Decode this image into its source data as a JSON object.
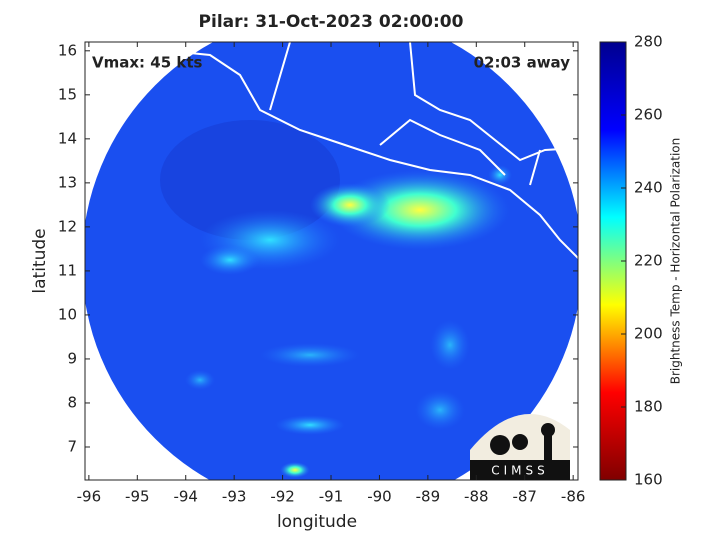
{
  "map": {
    "title": "Pilar: 31-Oct-2023 02:00:00",
    "annotation_left": "Vmax: 45 kts",
    "annotation_right": "02:03 away",
    "x_axis": {
      "label": "longitude",
      "lim": [
        -96.08,
        -85.9
      ],
      "ticks": [
        -96,
        -95,
        -94,
        -93,
        -92,
        -91,
        -90,
        -89,
        -88,
        -87,
        -86
      ]
    },
    "y_axis": {
      "label": "latitude",
      "lim": [
        6.25,
        16.2
      ],
      "ticks": [
        7,
        8,
        9,
        10,
        11,
        12,
        13,
        14,
        15,
        16
      ]
    },
    "colorbar": {
      "label": "Brightness Temp - Horizontal Polarization",
      "lim": [
        160,
        280
      ],
      "ticks": [
        160,
        180,
        200,
        220,
        240,
        260,
        280
      ],
      "colormap": [
        "#800000",
        "#ff0000",
        "#ffff00",
        "#00ffff",
        "#0000ff",
        "#00008f"
      ]
    },
    "logo": "CIMSS"
  }
}
